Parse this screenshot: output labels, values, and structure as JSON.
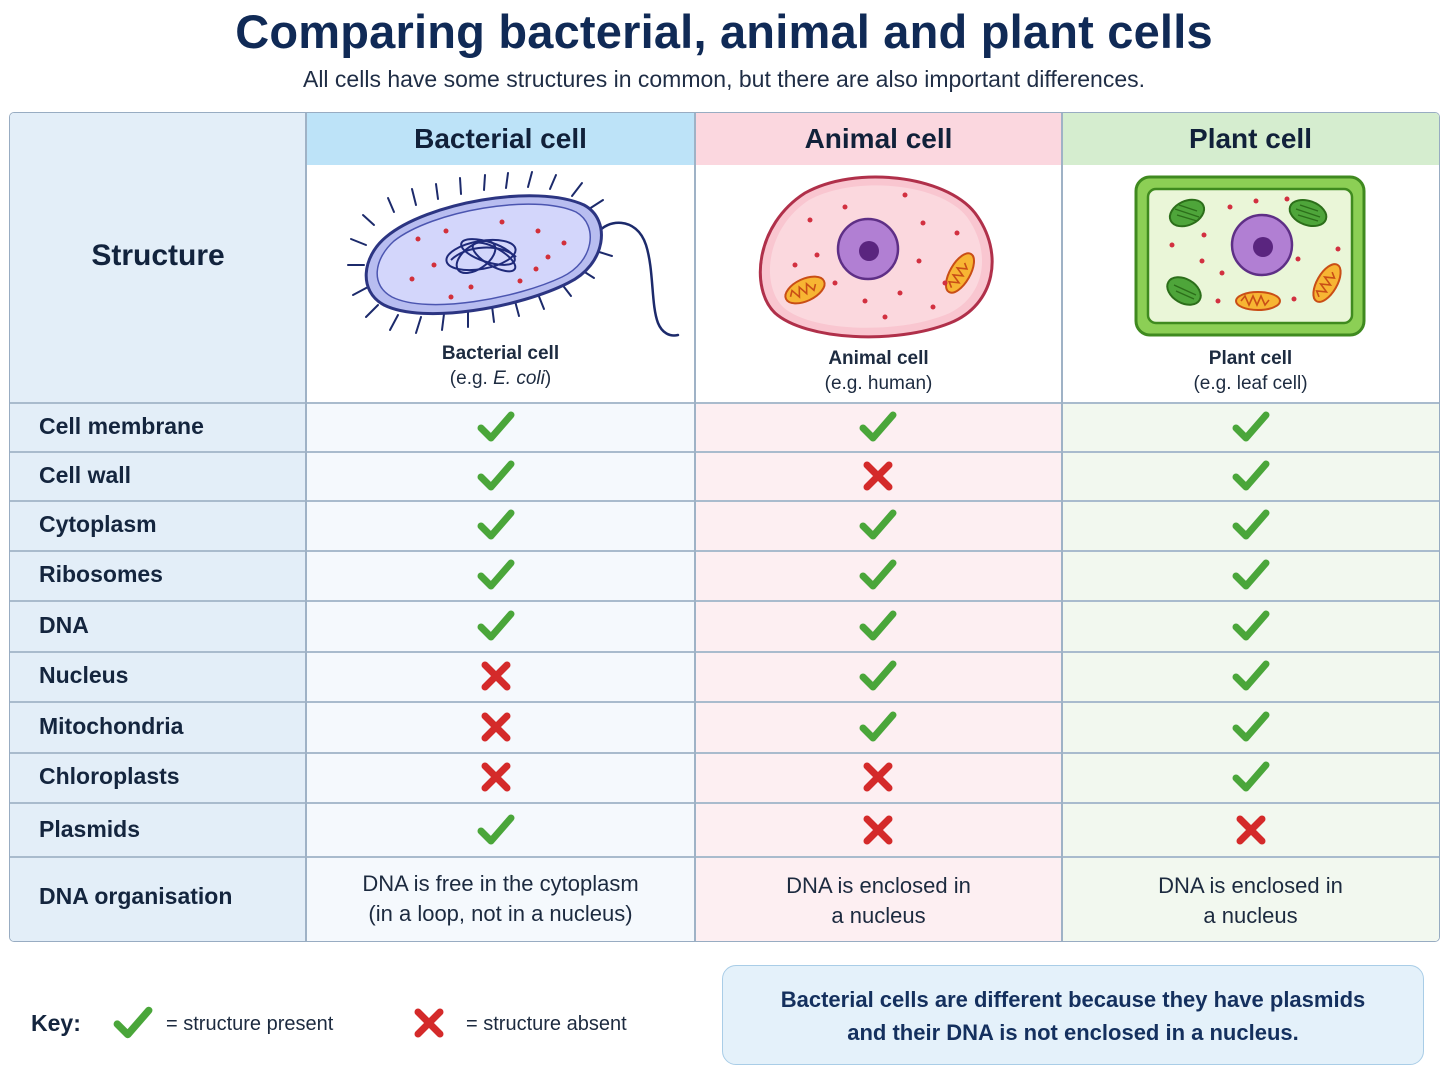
{
  "title": "Comparing bacterial, animal and plant cells",
  "subtitle": "All cells have some structures in common, but there are also important differences.",
  "structure_header": "Structure",
  "columns": {
    "bacterial": {
      "header": "Bacterial cell",
      "caption_name": "Bacterial cell",
      "caption_example_prefix": "(e.g. ",
      "caption_example_italic": "E. coli",
      "caption_example_suffix": ")"
    },
    "animal": {
      "header": "Animal cell",
      "caption_name": "Animal cell",
      "caption_example": "(e.g. human)"
    },
    "plant": {
      "header": "Plant cell",
      "caption_name": "Plant cell",
      "caption_example": "(e.g. leaf cell)"
    }
  },
  "rows": [
    {
      "label": "Cell membrane",
      "bacterial": true,
      "animal": true,
      "plant": true
    },
    {
      "label": "Cell wall",
      "bacterial": true,
      "animal": false,
      "plant": true
    },
    {
      "label": "Cytoplasm",
      "bacterial": true,
      "animal": true,
      "plant": true
    },
    {
      "label": "Ribosomes",
      "bacterial": true,
      "animal": true,
      "plant": true
    },
    {
      "label": "DNA",
      "bacterial": true,
      "animal": true,
      "plant": true
    },
    {
      "label": "Nucleus",
      "bacterial": false,
      "animal": true,
      "plant": true
    },
    {
      "label": "Mitochondria",
      "bacterial": false,
      "animal": true,
      "plant": true
    },
    {
      "label": "Chloroplasts",
      "bacterial": false,
      "animal": false,
      "plant": true
    },
    {
      "label": "Plasmids",
      "bacterial": true,
      "animal": false,
      "plant": false
    }
  ],
  "dna_row": {
    "label": "DNA organisation",
    "bacterial": [
      "DNA is free in the cytoplasm",
      "(in a loop, not in a nucleus)"
    ],
    "animal": [
      "DNA is enclosed in",
      "a nucleus"
    ],
    "plant": [
      "DNA is enclosed in",
      "a nucleus"
    ]
  },
  "key": {
    "label": "Key:",
    "present": "= structure present",
    "absent": "= structure absent"
  },
  "note": [
    "Bacterial cells are different because they have plasmids",
    "and their DNA is not enclosed in a nucleus."
  ],
  "colors": {
    "check": "#4aa63a",
    "cross": "#d42a2a",
    "bacterial_header": "#bde3f8",
    "animal_header": "#fbd7df",
    "plant_header": "#d5edcf"
  }
}
